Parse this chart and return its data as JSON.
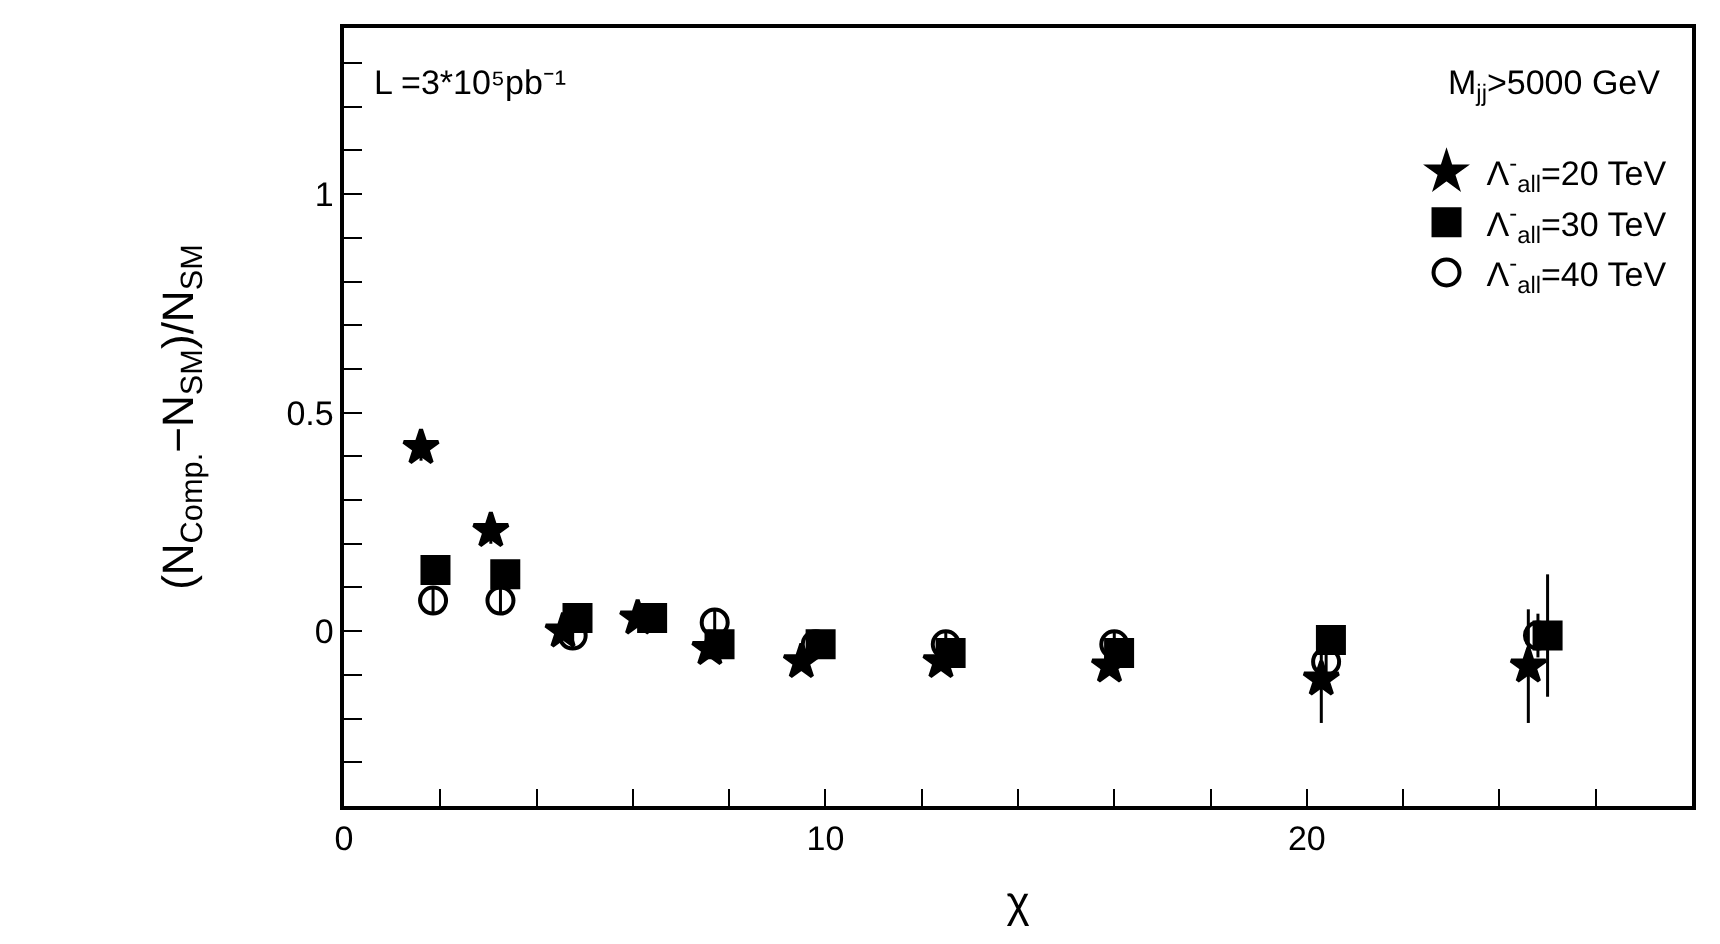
{
  "chart_data": {
    "type": "scatter",
    "xlabel": "χ",
    "ylabel": "(N$_{Comp.}$−N$_{SM}$)/N$_{SM}$",
    "annotations": [
      "L =3*10⁵pb⁻¹",
      "M$_{jj}$>5000 GeV"
    ],
    "xlim": [
      0,
      28
    ],
    "ylim": [
      -0.4,
      1.38
    ],
    "xticks": [
      0,
      {
        "value": 2,
        "label": null
      },
      {
        "value": 4,
        "label": null
      },
      {
        "value": 6,
        "label": null
      },
      {
        "value": 8,
        "label": null
      },
      10,
      {
        "value": 12,
        "label": null
      },
      {
        "value": 14,
        "label": null
      },
      {
        "value": 16,
        "label": null
      },
      {
        "value": 18,
        "label": null
      },
      20,
      {
        "value": 22,
        "label": null
      },
      {
        "value": 24,
        "label": null
      },
      {
        "value": 26,
        "label": null
      }
    ],
    "yticks": [
      {
        "value": -0.3,
        "label": null
      },
      {
        "value": -0.2,
        "label": null
      },
      {
        "value": -0.1,
        "label": null
      },
      0,
      {
        "value": 0.1,
        "label": null
      },
      {
        "value": 0.2,
        "label": null
      },
      {
        "value": 0.3,
        "label": null
      },
      {
        "value": 0.4,
        "label": null
      },
      0.5,
      {
        "value": 0.6,
        "label": null
      },
      {
        "value": 0.7,
        "label": null
      },
      {
        "value": 0.8,
        "label": null
      },
      {
        "value": 0.9,
        "label": null
      },
      1,
      {
        "value": 1.1,
        "label": null
      },
      {
        "value": 1.2,
        "label": null
      },
      {
        "value": 1.3,
        "label": null
      }
    ],
    "legend": "top right",
    "series": [
      {
        "name": "Λ$^{-}$$_{all}$=20 TeV",
        "color": "#000000",
        "marker": "star",
        "x": [
          1.6,
          3.05,
          4.55,
          6.1,
          7.6,
          9.5,
          12.4,
          15.9,
          20.3,
          24.6
        ],
        "values": [
          0.42,
          0.23,
          0.0,
          0.03,
          -0.04,
          -0.07,
          -0.07,
          -0.08,
          -0.11,
          -0.08
        ],
        "errors": [
          0.03,
          0.03,
          0.02,
          0.02,
          0.02,
          0.02,
          0.02,
          0.02,
          0.1,
          0.13
        ]
      },
      {
        "name": "Λ$^{-}$$_{all}$=30 TeV",
        "color": "#000000",
        "marker": "square",
        "x": [
          1.9,
          3.35,
          4.85,
          6.4,
          7.8,
          9.9,
          12.6,
          16.1,
          20.5,
          25.0
        ],
        "values": [
          0.14,
          0.13,
          0.03,
          0.03,
          -0.03,
          -0.03,
          -0.05,
          -0.05,
          -0.02,
          -0.01
        ],
        "errors": [
          0.03,
          0.03,
          0.03,
          0.02,
          0.02,
          0.02,
          0.02,
          0.02,
          0.03,
          0.14
        ]
      },
      {
        "name": "Λ$^{-}$$_{all}$=40 TeV",
        "color": "#000000",
        "marker": "circle",
        "x": [
          1.85,
          3.25,
          4.75,
          6.2,
          7.7,
          9.8,
          12.5,
          16.0,
          20.4,
          24.8
        ],
        "values": [
          0.07,
          0.07,
          -0.01,
          null,
          0.02,
          -0.03,
          -0.03,
          -0.03,
          -0.07,
          -0.01
        ],
        "errors": [
          0.03,
          0.03,
          0.03,
          null,
          0.03,
          0.02,
          0.03,
          0.03,
          0.03,
          0.05
        ]
      }
    ]
  }
}
